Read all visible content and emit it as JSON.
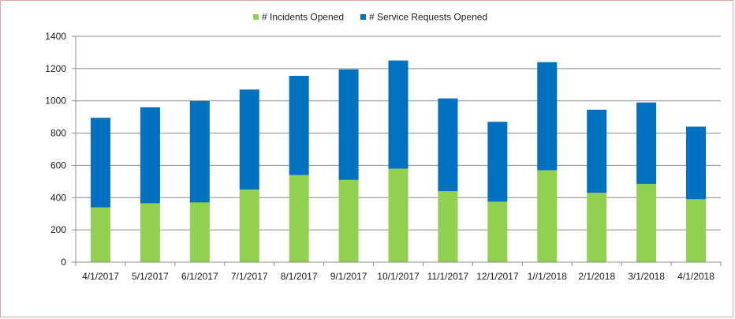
{
  "chart_data": {
    "type": "bar",
    "stacked": true,
    "categories": [
      "4/1/2017",
      "5/1/2017",
      "6/1/2017",
      "7/1/2017",
      "8/1/2017",
      "9/1/2017",
      "10/1/2017",
      "11/1/2017",
      "12/1/2017",
      "1//1/2018",
      "2/1/2018",
      "3/1/2018",
      "4/1/2018"
    ],
    "series": [
      {
        "name": "# Incidents Opened",
        "color": "#92d050",
        "values": [
          340,
          365,
          370,
          450,
          540,
          510,
          580,
          440,
          375,
          570,
          430,
          485,
          390
        ]
      },
      {
        "name": "# Service Requests Opened",
        "color": "#0070c0",
        "values": [
          555,
          595,
          630,
          620,
          615,
          685,
          670,
          575,
          495,
          670,
          515,
          505,
          450
        ]
      }
    ],
    "ylim": [
      0,
      1400
    ],
    "yticks": [
      0,
      200,
      400,
      600,
      800,
      1000,
      1200,
      1400
    ],
    "grid": true,
    "legend": "top-center",
    "title": "",
    "xlabel": "",
    "ylabel": ""
  }
}
